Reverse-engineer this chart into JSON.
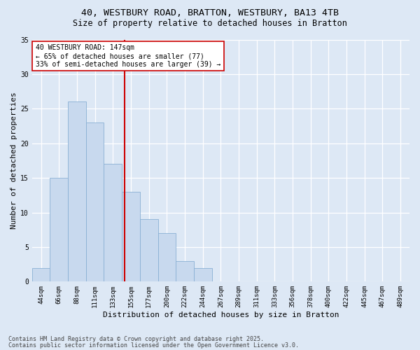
{
  "title_line1": "40, WESTBURY ROAD, BRATTON, WESTBURY, BA13 4TB",
  "title_line2": "Size of property relative to detached houses in Bratton",
  "xlabel": "Distribution of detached houses by size in Bratton",
  "ylabel": "Number of detached properties",
  "bar_labels": [
    "44sqm",
    "66sqm",
    "88sqm",
    "111sqm",
    "133sqm",
    "155sqm",
    "177sqm",
    "200sqm",
    "222sqm",
    "244sqm",
    "267sqm",
    "289sqm",
    "311sqm",
    "333sqm",
    "356sqm",
    "378sqm",
    "400sqm",
    "422sqm",
    "445sqm",
    "467sqm",
    "489sqm"
  ],
  "bar_values": [
    2,
    15,
    26,
    23,
    17,
    13,
    9,
    7,
    3,
    2,
    0,
    0,
    0,
    0,
    0,
    0,
    0,
    0,
    0,
    0,
    0
  ],
  "bar_color": "#c8d9ee",
  "bar_edgecolor": "#8ab0d4",
  "vline_x": 4.63,
  "vline_color": "#cc0000",
  "annotation_text": "40 WESTBURY ROAD: 147sqm\n← 65% of detached houses are smaller (77)\n33% of semi-detached houses are larger (39) →",
  "annotation_box_edgecolor": "#cc0000",
  "annotation_box_facecolor": "#ffffff",
  "ylim": [
    0,
    35
  ],
  "yticks": [
    0,
    5,
    10,
    15,
    20,
    25,
    30,
    35
  ],
  "background_color": "#dde8f5",
  "footer_line1": "Contains HM Land Registry data © Crown copyright and database right 2025.",
  "footer_line2": "Contains public sector information licensed under the Open Government Licence v3.0.",
  "title_fontsize": 9.5,
  "subtitle_fontsize": 8.5,
  "axis_label_fontsize": 8,
  "tick_fontsize": 6.5,
  "annotation_fontsize": 7,
  "footer_fontsize": 6
}
